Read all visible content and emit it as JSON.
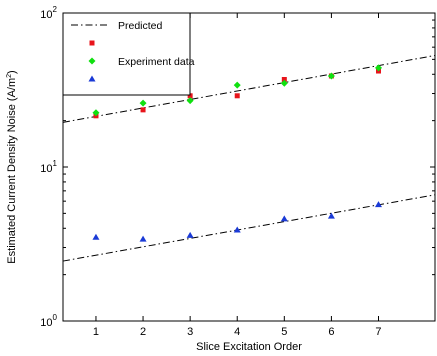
{
  "chart_data": {
    "type": "scatter",
    "title": "",
    "xlabel": "Slice Excitation Order",
    "ylabel_main": "Estimated Current Density Noise (A/m",
    "ylabel_sup": "2",
    "ylabel_close": ")",
    "xlim": [
      0.3,
      8.2
    ],
    "ylim": [
      1,
      100
    ],
    "yscale": "log",
    "grid": false,
    "legend_position": "top-left",
    "x_ticks": [
      1,
      2,
      3,
      4,
      5,
      6,
      7
    ],
    "x_tick_labels": [
      "1",
      "2",
      "3",
      "4",
      "5",
      "6",
      "7"
    ],
    "y_ticks": [
      {
        "value": 1,
        "base": "10",
        "exp": "0"
      },
      {
        "value": 10,
        "base": "10",
        "exp": "1"
      },
      {
        "value": 100,
        "base": "10",
        "exp": "2"
      }
    ],
    "legend": {
      "entries": [
        {
          "label": "Predicted",
          "symbol": "dashdot-line",
          "color": "#000000"
        },
        {
          "label": "",
          "symbol": "square",
          "color": "#e8141b"
        },
        {
          "label": "Experiment data",
          "symbol": "diamond",
          "color": "#10e010"
        },
        {
          "label": "",
          "symbol": "triangle",
          "color": "#1a3ad6"
        }
      ]
    },
    "series": [
      {
        "marker": "dashdot-line",
        "color": "#000000",
        "x": [
          0.3,
          8.2
        ],
        "y": [
          19.5,
          53
        ]
      },
      {
        "marker": "dashdot-line",
        "color": "#000000",
        "x": [
          0.3,
          8.2
        ],
        "y": [
          2.45,
          6.6
        ]
      },
      {
        "marker": "square",
        "color": "#e8141b",
        "x": [
          1,
          2,
          3,
          4,
          5,
          6,
          7
        ],
        "y": [
          21.5,
          23.5,
          29,
          29,
          37,
          39,
          42
        ]
      },
      {
        "marker": "diamond",
        "color": "#10e010",
        "x": [
          1,
          2,
          3,
          4,
          5,
          6,
          7
        ],
        "y": [
          22.5,
          26,
          27,
          34,
          35,
          39,
          44
        ]
      },
      {
        "marker": "triangle",
        "color": "#1a3ad6",
        "x": [
          1,
          2,
          3,
          4,
          5,
          6,
          7
        ],
        "y": [
          3.5,
          3.4,
          3.6,
          3.9,
          4.6,
          4.8,
          5.7
        ]
      }
    ]
  }
}
